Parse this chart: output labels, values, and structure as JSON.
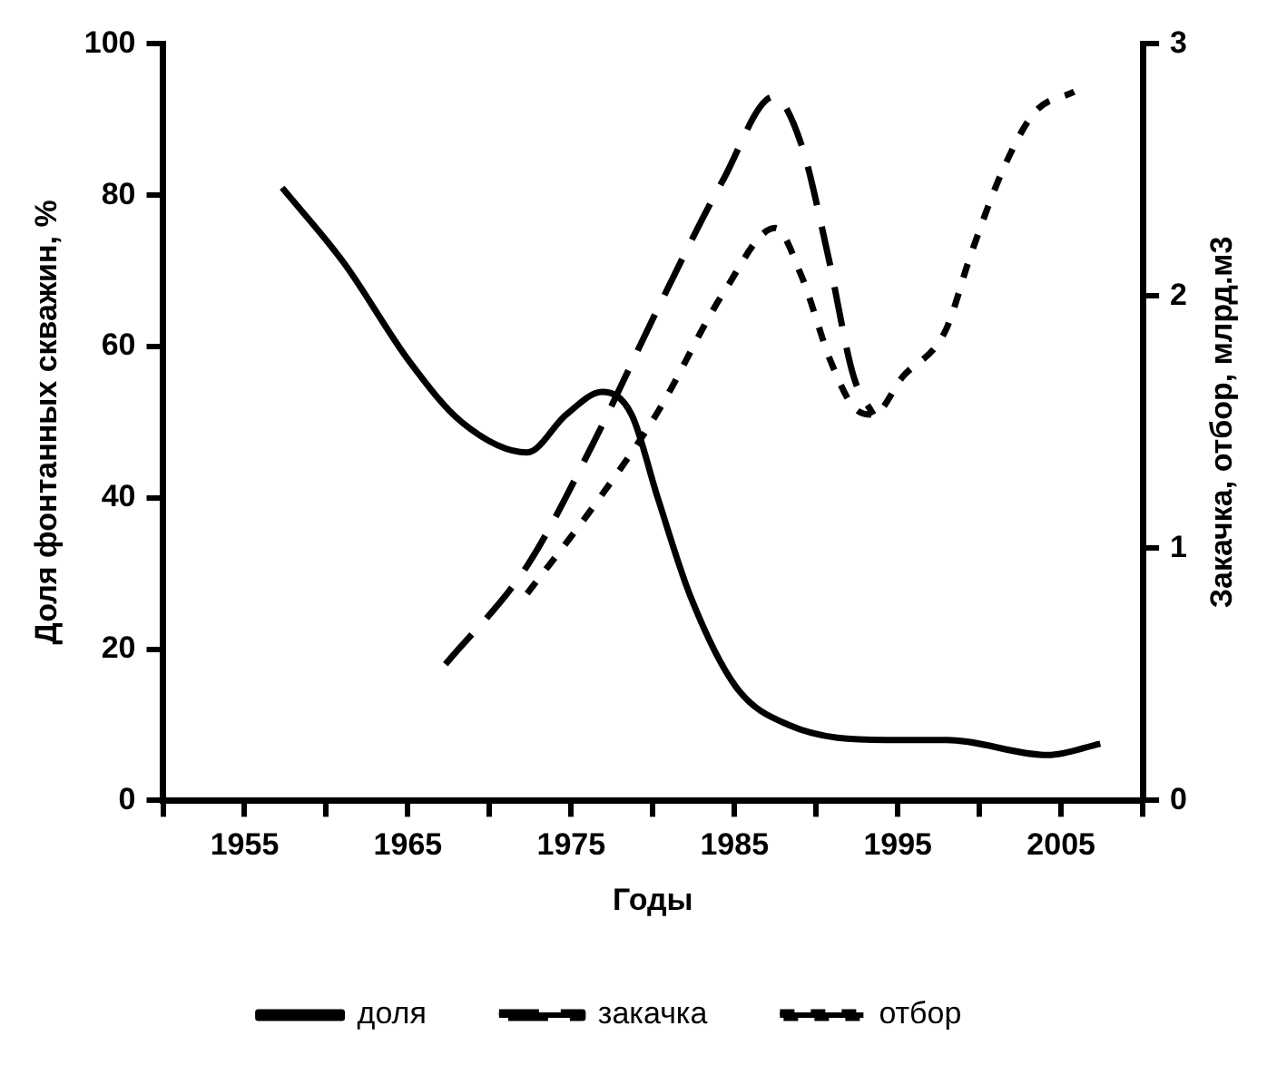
{
  "chart_data": {
    "type": "line",
    "xlabel": "Годы",
    "ylabel": "Доля фонтанных скважин, %",
    "y2label": "Закачка, отбор, млрд.м3",
    "xlim": [
      1950,
      2010
    ],
    "xticks": [
      {
        "value": 1950,
        "label": null
      },
      1955,
      {
        "value": 1960,
        "label": null
      },
      1965,
      {
        "value": 1970,
        "label": null
      },
      1975,
      {
        "value": 1980,
        "label": null
      },
      1985,
      {
        "value": 1990,
        "label": null
      },
      1995,
      {
        "value": 2000,
        "label": null
      },
      2005,
      {
        "value": 2010,
        "label": null
      }
    ],
    "ylim": [
      0,
      100
    ],
    "yticks": [
      0,
      20,
      40,
      60,
      80,
      100
    ],
    "y2lim": [
      0,
      3
    ],
    "y2ticks": [
      0,
      1,
      2,
      3
    ],
    "grid": false,
    "legend": "bottom",
    "marker": "none",
    "series": [
      {
        "name": "доля",
        "color": "#000000",
        "line_style": "solid",
        "x": [
          1957.3,
          1961.1,
          1965.1,
          1968.3,
          1972.3,
          1974.7,
          1976.9,
          1978.7,
          1980.3,
          1982.3,
          1985.1,
          1988.3,
          1994.3,
          1998,
          2004.2,
          2007.4
        ],
        "values": [
          81,
          71,
          58,
          50,
          46,
          51,
          54,
          51,
          40,
          27,
          15,
          10,
          8,
          8,
          6,
          7.5
        ]
      },
      {
        "name": "закачка",
        "color": "#000000",
        "line_style": "dashed",
        "axis": "y2",
        "x": [
          1967.3,
          1972.3,
          1976.3,
          1980.3,
          1984.3,
          1987.4,
          1989.1,
          1990.7,
          1992.3,
          1993.5
        ],
        "values": [
          0.54,
          0.93,
          1.41,
          1.95,
          2.46,
          2.79,
          2.6,
          2.17,
          1.68,
          1.53
        ]
      },
      {
        "name": "отбор",
        "color": "#000000",
        "line_style": "dotted",
        "axis": "y2",
        "x": [
          1972.3,
          1976.3,
          1980.3,
          1984.3,
          1987.5,
          1989.1,
          1990.9,
          1992.3,
          1993.5,
          1995.3,
          1997.9,
          1999.5,
          2001.5,
          2003.4,
          2005.8
        ],
        "values": [
          0.82,
          1.16,
          1.54,
          2.01,
          2.27,
          2.08,
          1.74,
          1.56,
          1.53,
          1.68,
          1.86,
          2.17,
          2.51,
          2.73,
          2.81
        ]
      }
    ]
  }
}
